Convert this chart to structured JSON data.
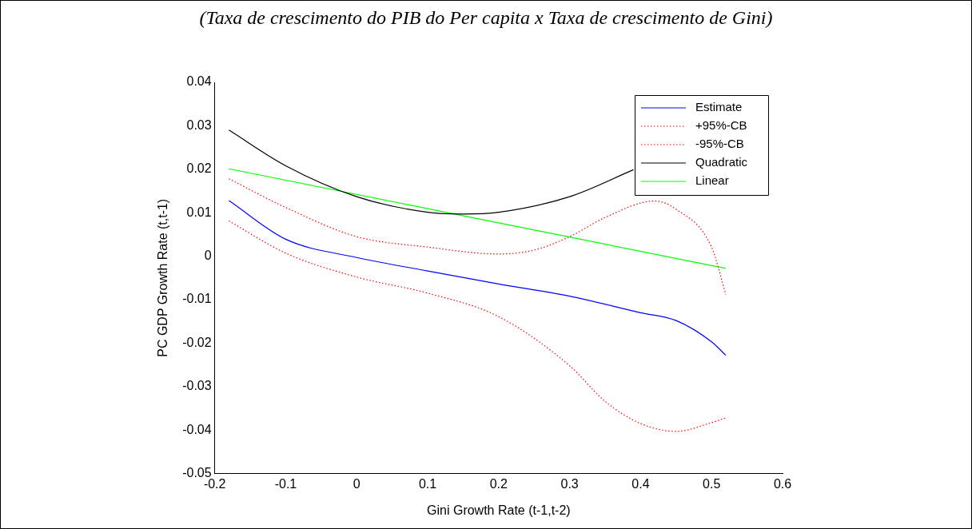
{
  "chart_data": {
    "type": "line",
    "title": "(Taxa de crescimento do PIB do Per capita x Taxa de crescimento de Gini)",
    "xlabel": "Gini Growth Rate (t-1,t-2)",
    "ylabel": "PC GDP Growth Rate (t,t-1)",
    "xlim": [
      -0.2,
      0.6
    ],
    "xticks": [
      -0.2,
      -0.1,
      0,
      0.1,
      0.2,
      0.3,
      0.4,
      0.5,
      0.6
    ],
    "ylim": [
      -0.05,
      0.04
    ],
    "yticks": [
      -0.05,
      -0.04,
      -0.03,
      -0.02,
      -0.01,
      0,
      0.01,
      0.02,
      0.03,
      0.04
    ],
    "grid": false,
    "legend": "top right",
    "marker": "none",
    "series": [
      {
        "name": "Estimate",
        "color": "#0000ff",
        "line_style": "solid",
        "x": [
          -0.18,
          -0.1,
          0,
          0.1,
          0.2,
          0.3,
          0.4,
          0.45,
          0.5,
          0.52
        ],
        "values": [
          0.0128,
          0.0039,
          -0.0003,
          -0.0034,
          -0.0064,
          -0.0092,
          -0.013,
          -0.0148,
          -0.0197,
          -0.0228
        ]
      },
      {
        "name": "+95%-CB",
        "color": "#ff0000",
        "line_style": "dotted",
        "x": [
          -0.18,
          -0.1,
          0,
          0.1,
          0.2,
          0.25,
          0.3,
          0.35,
          0.42,
          0.45,
          0.5,
          0.52
        ],
        "values": [
          0.0178,
          0.0112,
          0.0045,
          0.0021,
          0.0005,
          0.0014,
          0.0045,
          0.0089,
          0.0127,
          0.0108,
          0.0021,
          -0.0088
        ]
      },
      {
        "name": "-95%-CB",
        "color": "#ff0000",
        "line_style": "dotted",
        "x": [
          -0.18,
          -0.1,
          0,
          0.1,
          0.2,
          0.3,
          0.35,
          0.4,
          0.45,
          0.5,
          0.52
        ],
        "values": [
          0.0081,
          0.0007,
          -0.0048,
          -0.0085,
          -0.0139,
          -0.0252,
          -0.0334,
          -0.0385,
          -0.0403,
          -0.0383,
          -0.0372
        ]
      },
      {
        "name": "Quadratic",
        "color": "#000000",
        "line_style": "solid",
        "x": [
          -0.18,
          -0.1,
          0,
          0.1,
          0.15,
          0.2,
          0.3,
          0.39
        ],
        "values": [
          0.029,
          0.0208,
          0.0137,
          0.0101,
          0.0097,
          0.0101,
          0.0137,
          0.0199
        ]
      },
      {
        "name": "Linear",
        "color": "#00ff00",
        "line_style": "solid",
        "x": [
          -0.18,
          0.52
        ],
        "values": [
          0.0201,
          -0.0028
        ]
      }
    ]
  }
}
